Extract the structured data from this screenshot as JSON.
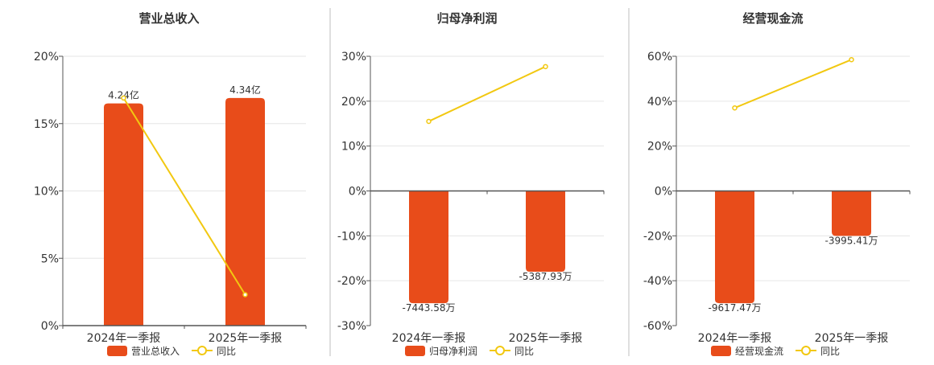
{
  "legend_yoy_label": "同比",
  "colors": {
    "bar": "#e84c1a",
    "line": "#f2c811",
    "axis": "#555555",
    "grid": "#e6e6e6",
    "divider": "#bfbfbf",
    "text": "#333333"
  },
  "chart_data": [
    {
      "type": "bar",
      "title": "营业总收入",
      "categories": [
        "2024年一季报",
        "2025年一季报"
      ],
      "series": [
        {
          "name": "营业总收入",
          "kind": "bar",
          "values": [
            16.5,
            16.9
          ],
          "labels": [
            "4.24亿",
            "4.34亿"
          ]
        },
        {
          "name": "同比",
          "kind": "line",
          "values": [
            16.9,
            2.3
          ]
        }
      ],
      "ylim": [
        0,
        20
      ],
      "yticks": [
        0,
        5,
        10,
        15,
        20
      ],
      "ytick_labels": [
        "0%",
        "5%",
        "10%",
        "15%",
        "20%"
      ],
      "grid": true,
      "legend": "bottom"
    },
    {
      "type": "bar",
      "title": "归母净利润",
      "categories": [
        "2024年一季报",
        "2025年一季报"
      ],
      "series": [
        {
          "name": "归母净利润",
          "kind": "bar",
          "values": [
            -25,
            -18
          ],
          "labels": [
            "-7443.58万",
            "-5387.93万"
          ]
        },
        {
          "name": "同比",
          "kind": "line",
          "values": [
            15.5,
            27.7
          ]
        }
      ],
      "ylim": [
        -30,
        30
      ],
      "yticks": [
        -30,
        -20,
        -10,
        0,
        10,
        20,
        30
      ],
      "ytick_labels": [
        "-30%",
        "-20%",
        "-10%",
        "0%",
        "10%",
        "20%",
        "30%"
      ],
      "grid": true,
      "legend": "bottom"
    },
    {
      "type": "bar",
      "title": "经营现金流",
      "categories": [
        "2024年一季报",
        "2025年一季报"
      ],
      "series": [
        {
          "name": "经营现金流",
          "kind": "bar",
          "values": [
            -50,
            -20
          ],
          "labels": [
            "-9617.47万",
            "-3995.41万"
          ]
        },
        {
          "name": "同比",
          "kind": "line",
          "values": [
            37,
            58.5
          ]
        }
      ],
      "ylim": [
        -60,
        60
      ],
      "yticks": [
        -60,
        -40,
        -20,
        0,
        20,
        40,
        60
      ],
      "ytick_labels": [
        "-60%",
        "-40%",
        "-20%",
        "0%",
        "20%",
        "40%",
        "60%"
      ],
      "grid": true,
      "legend": "bottom"
    }
  ]
}
